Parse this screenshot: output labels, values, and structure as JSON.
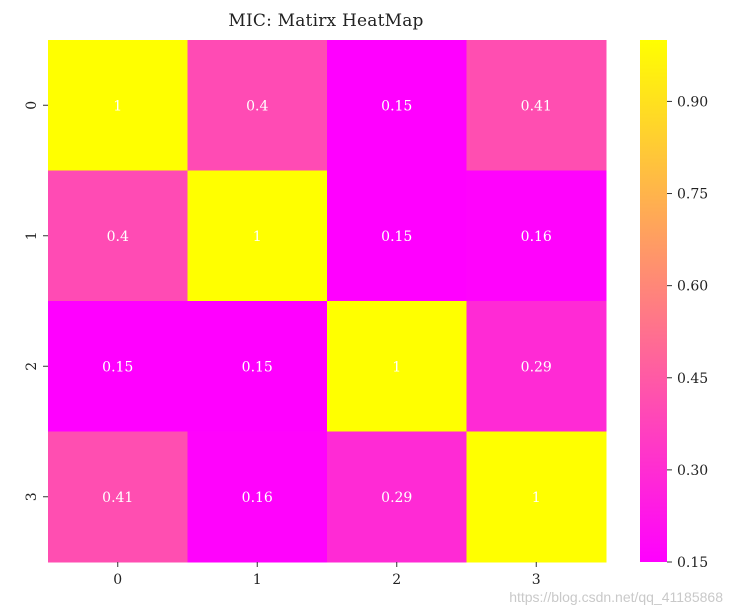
{
  "chart_data": {
    "type": "heatmap",
    "title": "MIC: Matirx HeatMap",
    "x_ticks": [
      "0",
      "1",
      "2",
      "3"
    ],
    "y_ticks": [
      "0",
      "1",
      "2",
      "3"
    ],
    "values": [
      [
        1,
        0.4,
        0.15,
        0.41
      ],
      [
        0.4,
        1,
        0.15,
        0.16
      ],
      [
        0.15,
        0.15,
        1,
        0.29
      ],
      [
        0.41,
        0.16,
        0.29,
        1
      ]
    ],
    "cell_labels": [
      [
        "1",
        "0.4",
        "0.15",
        "0.41"
      ],
      [
        "0.4",
        "1",
        "0.15",
        "0.16"
      ],
      [
        "0.15",
        "0.15",
        "1",
        "0.29"
      ],
      [
        "0.41",
        "0.16",
        "0.29",
        "1"
      ]
    ],
    "colormap": "spring",
    "colors": {
      "low": "#ff00ff",
      "high": "#ffff00",
      "annotation_text": "#ffffff"
    },
    "colorbar": {
      "range": [
        0.15,
        1
      ],
      "tick_values": [
        0.15,
        0.3,
        0.45,
        0.6,
        0.75,
        0.9
      ],
      "tick_labels": [
        "0.15",
        "0.30",
        "0.45",
        "0.60",
        "0.75",
        "0.90"
      ]
    },
    "xlabel": "",
    "ylabel": ""
  },
  "watermark": "https://blog.csdn.net/qq_41185868"
}
